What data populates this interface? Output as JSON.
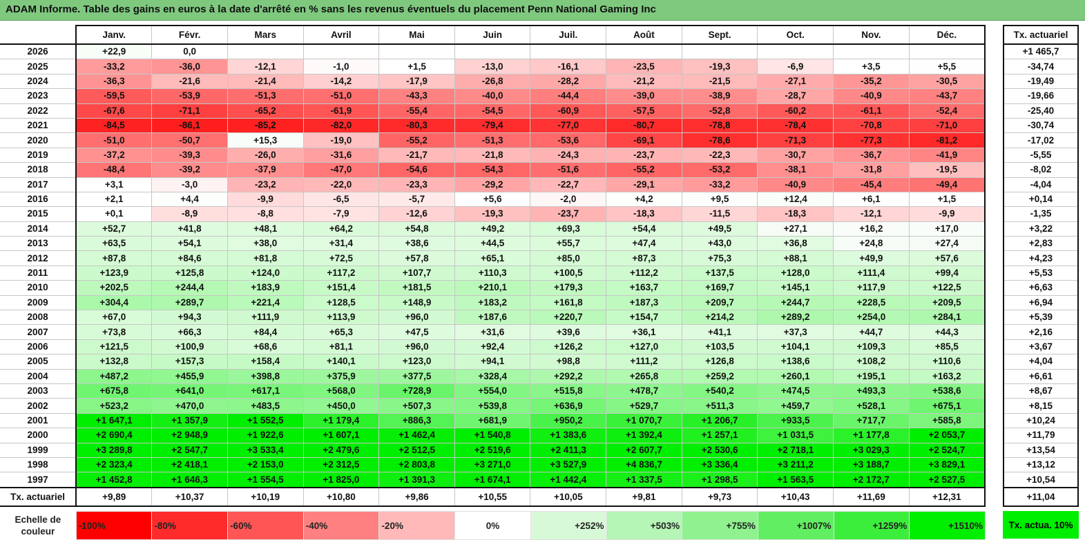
{
  "title": "ADAM Informe. Table des gains en euros à la date d'arrêté en % sans les revenus éventuels du placement Penn National Gaming Inc",
  "months": [
    "Janv.",
    "Févr.",
    "Mars",
    "Avril",
    "Mai",
    "Juin",
    "Juil.",
    "Août",
    "Sept.",
    "Oct.",
    "Nov.",
    "Déc."
  ],
  "act_header": "Tx. actuariel",
  "rows": [
    {
      "year": "2026",
      "vals": [
        "+22,9",
        "0,0",
        "",
        "",
        "",
        "",
        "",
        "",
        "",
        "",
        "",
        ""
      ],
      "nums": [
        22.9,
        0,
        null,
        null,
        null,
        null,
        null,
        null,
        null,
        null,
        null,
        null
      ],
      "act": "+1 465,7"
    },
    {
      "year": "2025",
      "vals": [
        "-33,2",
        "-36,0",
        "-12,1",
        "-1,0",
        "+1,5",
        "-13,0",
        "-16,1",
        "-23,5",
        "-19,3",
        "-6,9",
        "+3,5",
        "+5,5"
      ],
      "nums": [
        -33.2,
        -36,
        -12.1,
        -1,
        1.5,
        -13,
        -16.1,
        -23.5,
        -19.3,
        -6.9,
        3.5,
        5.5
      ],
      "act": "-34,74"
    },
    {
      "year": "2024",
      "vals": [
        "-36,3",
        "-21,6",
        "-21,4",
        "-14,2",
        "-17,9",
        "-26,8",
        "-28,2",
        "-21,2",
        "-21,5",
        "-27,1",
        "-35,2",
        "-30,5"
      ],
      "nums": [
        -36.3,
        -21.6,
        -21.4,
        -14.2,
        -17.9,
        -26.8,
        -28.2,
        -21.2,
        -21.5,
        -27.1,
        -35.2,
        -30.5
      ],
      "act": "-19,49"
    },
    {
      "year": "2023",
      "vals": [
        "-59,5",
        "-53,9",
        "-51,3",
        "-51,0",
        "-43,3",
        "-40,0",
        "-44,4",
        "-39,0",
        "-38,9",
        "-28,7",
        "-40,9",
        "-43,7"
      ],
      "nums": [
        -59.5,
        -53.9,
        -51.3,
        -51,
        -43.3,
        -40,
        -44.4,
        -39,
        -38.9,
        -28.7,
        -40.9,
        -43.7
      ],
      "act": "-19,66"
    },
    {
      "year": "2022",
      "vals": [
        "-67,6",
        "-71,1",
        "-65,2",
        "-61,9",
        "-55,4",
        "-54,5",
        "-60,9",
        "-57,5",
        "-52,8",
        "-60,2",
        "-61,1",
        "-52,4"
      ],
      "nums": [
        -67.6,
        -71.1,
        -65.2,
        -61.9,
        -55.4,
        -54.5,
        -60.9,
        -57.5,
        -52.8,
        -60.2,
        -61.1,
        -52.4
      ],
      "act": "-25,40"
    },
    {
      "year": "2021",
      "vals": [
        "-84,5",
        "-86,1",
        "-85,2",
        "-82,0",
        "-80,3",
        "-79,4",
        "-77,0",
        "-80,7",
        "-78,8",
        "-78,4",
        "-70,8",
        "-71,0"
      ],
      "nums": [
        -84.5,
        -86.1,
        -85.2,
        -82,
        -80.3,
        -79.4,
        -77,
        -80.7,
        -78.8,
        -78.4,
        -70.8,
        -71
      ],
      "act": "-30,74"
    },
    {
      "year": "2020",
      "vals": [
        "-51,0",
        "-50,7",
        "+15,3",
        "-19,0",
        "-55,2",
        "-51,3",
        "-53,6",
        "-69,1",
        "-78,6",
        "-71,3",
        "-77,3",
        "-81,2"
      ],
      "nums": [
        -51,
        -50.7,
        15.3,
        -19,
        -55.2,
        -51.3,
        -53.6,
        -69.1,
        -78.6,
        -71.3,
        -77.3,
        -81.2
      ],
      "act": "-17,02"
    },
    {
      "year": "2019",
      "vals": [
        "-37,2",
        "-39,3",
        "-26,0",
        "-31,6",
        "-21,7",
        "-21,8",
        "-24,3",
        "-23,7",
        "-22,3",
        "-30,7",
        "-36,7",
        "-41,9"
      ],
      "nums": [
        -37.2,
        -39.3,
        -26,
        -31.6,
        -21.7,
        -21.8,
        -24.3,
        -23.7,
        -22.3,
        -30.7,
        -36.7,
        -41.9
      ],
      "act": "-5,55"
    },
    {
      "year": "2018",
      "vals": [
        "-48,4",
        "-39,2",
        "-37,9",
        "-47,0",
        "-54,6",
        "-54,3",
        "-51,6",
        "-55,2",
        "-53,2",
        "-38,1",
        "-31,8",
        "-19,5"
      ],
      "nums": [
        -48.4,
        -39.2,
        -37.9,
        -47,
        -54.6,
        -54.3,
        -51.6,
        -55.2,
        -53.2,
        -38.1,
        -31.8,
        -19.5
      ],
      "act": "-8,02"
    },
    {
      "year": "2017",
      "vals": [
        "+3,1",
        "-3,0",
        "-23,2",
        "-22,0",
        "-23,3",
        "-29,2",
        "-22,7",
        "-29,1",
        "-33,2",
        "-40,9",
        "-45,4",
        "-49,4"
      ],
      "nums": [
        3.1,
        -3,
        -23.2,
        -22,
        -23.3,
        -29.2,
        -22.7,
        -29.1,
        -33.2,
        -40.9,
        -45.4,
        -49.4
      ],
      "act": "-4,04"
    },
    {
      "year": "2016",
      "vals": [
        "+2,1",
        "+4,4",
        "-9,9",
        "-6,5",
        "-5,7",
        "+5,6",
        "-2,0",
        "+4,2",
        "+9,5",
        "+12,4",
        "+6,1",
        "+1,5"
      ],
      "nums": [
        2.1,
        4.4,
        -9.9,
        -6.5,
        -5.7,
        5.6,
        -2,
        4.2,
        9.5,
        12.4,
        6.1,
        1.5
      ],
      "act": "+0,14"
    },
    {
      "year": "2015",
      "vals": [
        "+0,1",
        "-8,9",
        "-8,8",
        "-7,9",
        "-12,6",
        "-19,3",
        "-23,7",
        "-18,3",
        "-11,5",
        "-18,3",
        "-12,1",
        "-9,9"
      ],
      "nums": [
        0.1,
        -8.9,
        -8.8,
        -7.9,
        -12.6,
        -19.3,
        -23.7,
        -18.3,
        -11.5,
        -18.3,
        -12.1,
        -9.9
      ],
      "act": "-1,35"
    },
    {
      "year": "2014",
      "vals": [
        "+52,7",
        "+41,8",
        "+48,1",
        "+64,2",
        "+54,8",
        "+49,2",
        "+69,3",
        "+54,4",
        "+49,5",
        "+27,1",
        "+16,2",
        "+17,0"
      ],
      "nums": [
        52.7,
        41.8,
        48.1,
        64.2,
        54.8,
        49.2,
        69.3,
        54.4,
        49.5,
        27.1,
        16.2,
        17
      ],
      "act": "+3,22"
    },
    {
      "year": "2013",
      "vals": [
        "+63,5",
        "+54,1",
        "+38,0",
        "+31,4",
        "+38,6",
        "+44,5",
        "+55,7",
        "+47,4",
        "+43,0",
        "+36,8",
        "+24,8",
        "+27,4"
      ],
      "nums": [
        63.5,
        54.1,
        38,
        31.4,
        38.6,
        44.5,
        55.7,
        47.4,
        43,
        36.8,
        24.8,
        27.4
      ],
      "act": "+2,83"
    },
    {
      "year": "2012",
      "vals": [
        "+87,8",
        "+84,6",
        "+81,8",
        "+72,5",
        "+57,8",
        "+65,1",
        "+85,0",
        "+87,3",
        "+75,3",
        "+88,1",
        "+49,9",
        "+57,6"
      ],
      "nums": [
        87.8,
        84.6,
        81.8,
        72.5,
        57.8,
        65.1,
        85,
        87.3,
        75.3,
        88.1,
        49.9,
        57.6
      ],
      "act": "+4,23"
    },
    {
      "year": "2011",
      "vals": [
        "+123,9",
        "+125,8",
        "+124,0",
        "+117,2",
        "+107,7",
        "+110,3",
        "+100,5",
        "+112,2",
        "+137,5",
        "+128,0",
        "+111,4",
        "+99,4"
      ],
      "nums": [
        123.9,
        125.8,
        124,
        117.2,
        107.7,
        110.3,
        100.5,
        112.2,
        137.5,
        128,
        111.4,
        99.4
      ],
      "act": "+5,53"
    },
    {
      "year": "2010",
      "vals": [
        "+202,5",
        "+244,4",
        "+183,9",
        "+151,4",
        "+181,5",
        "+210,1",
        "+179,3",
        "+163,7",
        "+169,7",
        "+145,1",
        "+117,9",
        "+122,5"
      ],
      "nums": [
        202.5,
        244.4,
        183.9,
        151.4,
        181.5,
        210.1,
        179.3,
        163.7,
        169.7,
        145.1,
        117.9,
        122.5
      ],
      "act": "+6,63"
    },
    {
      "year": "2009",
      "vals": [
        "+304,4",
        "+289,7",
        "+221,4",
        "+128,5",
        "+148,9",
        "+183,2",
        "+161,8",
        "+187,3",
        "+209,7",
        "+244,7",
        "+228,5",
        "+209,5"
      ],
      "nums": [
        304.4,
        289.7,
        221.4,
        128.5,
        148.9,
        183.2,
        161.8,
        187.3,
        209.7,
        244.7,
        228.5,
        209.5
      ],
      "act": "+6,94"
    },
    {
      "year": "2008",
      "vals": [
        "+67,0",
        "+94,3",
        "+111,9",
        "+113,9",
        "+96,0",
        "+187,6",
        "+220,7",
        "+154,7",
        "+214,2",
        "+289,2",
        "+254,0",
        "+284,1"
      ],
      "nums": [
        67,
        94.3,
        111.9,
        113.9,
        96,
        187.6,
        220.7,
        154.7,
        214.2,
        289.2,
        254,
        284.1
      ],
      "act": "+5,39"
    },
    {
      "year": "2007",
      "vals": [
        "+73,8",
        "+66,3",
        "+84,4",
        "+65,3",
        "+47,5",
        "+31,6",
        "+39,6",
        "+36,1",
        "+41,1",
        "+37,3",
        "+44,7",
        "+44,3"
      ],
      "nums": [
        73.8,
        66.3,
        84.4,
        65.3,
        47.5,
        31.6,
        39.6,
        36.1,
        41.1,
        37.3,
        44.7,
        44.3
      ],
      "act": "+2,16"
    },
    {
      "year": "2006",
      "vals": [
        "+121,5",
        "+100,9",
        "+68,6",
        "+81,1",
        "+96,0",
        "+92,4",
        "+126,2",
        "+127,0",
        "+103,5",
        "+104,1",
        "+109,3",
        "+85,5"
      ],
      "nums": [
        121.5,
        100.9,
        68.6,
        81.1,
        96,
        92.4,
        126.2,
        127,
        103.5,
        104.1,
        109.3,
        85.5
      ],
      "act": "+3,67"
    },
    {
      "year": "2005",
      "vals": [
        "+132,8",
        "+157,3",
        "+158,4",
        "+140,1",
        "+123,0",
        "+94,1",
        "+98,8",
        "+111,2",
        "+126,8",
        "+138,6",
        "+108,2",
        "+110,6"
      ],
      "nums": [
        132.8,
        157.3,
        158.4,
        140.1,
        123,
        94.1,
        98.8,
        111.2,
        126.8,
        138.6,
        108.2,
        110.6
      ],
      "act": "+4,04"
    },
    {
      "year": "2004",
      "vals": [
        "+487,2",
        "+455,9",
        "+398,8",
        "+375,9",
        "+377,5",
        "+328,4",
        "+292,2",
        "+265,8",
        "+259,2",
        "+260,1",
        "+195,1",
        "+163,2"
      ],
      "nums": [
        487.2,
        455.9,
        398.8,
        375.9,
        377.5,
        328.4,
        292.2,
        265.8,
        259.2,
        260.1,
        195.1,
        163.2
      ],
      "act": "+6,61"
    },
    {
      "year": "2003",
      "vals": [
        "+675,8",
        "+641,0",
        "+617,1",
        "+568,0",
        "+728,9",
        "+554,0",
        "+515,8",
        "+478,7",
        "+540,2",
        "+474,5",
        "+493,3",
        "+538,6"
      ],
      "nums": [
        675.8,
        641,
        617.1,
        568,
        728.9,
        554,
        515.8,
        478.7,
        540.2,
        474.5,
        493.3,
        538.6
      ],
      "act": "+8,67"
    },
    {
      "year": "2002",
      "vals": [
        "+523,2",
        "+470,0",
        "+483,5",
        "+450,0",
        "+507,3",
        "+539,8",
        "+636,9",
        "+529,7",
        "+511,3",
        "+459,7",
        "+528,1",
        "+675,1"
      ],
      "nums": [
        523.2,
        470,
        483.5,
        450,
        507.3,
        539.8,
        636.9,
        529.7,
        511.3,
        459.7,
        528.1,
        675.1
      ],
      "act": "+8,15"
    },
    {
      "year": "2001",
      "vals": [
        "+1 647,1",
        "+1 357,9",
        "+1 552,5",
        "+1 179,4",
        "+886,3",
        "+681,9",
        "+950,2",
        "+1 070,7",
        "+1 206,7",
        "+933,5",
        "+717,7",
        "+585,8"
      ],
      "nums": [
        1647.1,
        1357.9,
        1552.5,
        1179.4,
        886.3,
        681.9,
        950.2,
        1070.7,
        1206.7,
        933.5,
        717.7,
        585.8
      ],
      "act": "+10,24"
    },
    {
      "year": "2000",
      "vals": [
        "+2 690,4",
        "+2 948,9",
        "+1 922,6",
        "+1 607,1",
        "+1 462,4",
        "+1 540,8",
        "+1 383,6",
        "+1 392,4",
        "+1 257,1",
        "+1 031,5",
        "+1 177,8",
        "+2 053,7"
      ],
      "nums": [
        2690.4,
        2948.9,
        1922.6,
        1607.1,
        1462.4,
        1540.8,
        1383.6,
        1392.4,
        1257.1,
        1031.5,
        1177.8,
        2053.7
      ],
      "act": "+11,79"
    },
    {
      "year": "1999",
      "vals": [
        "+3 289,8",
        "+2 547,7",
        "+3 533,4",
        "+2 479,6",
        "+2 512,5",
        "+2 519,6",
        "+2 411,3",
        "+2 607,7",
        "+2 530,6",
        "+2 718,1",
        "+3 029,3",
        "+2 524,7"
      ],
      "nums": [
        3289.8,
        2547.7,
        3533.4,
        2479.6,
        2512.5,
        2519.6,
        2411.3,
        2607.7,
        2530.6,
        2718.1,
        3029.3,
        2524.7
      ],
      "act": "+13,54"
    },
    {
      "year": "1998",
      "vals": [
        "+2 323,4",
        "+2 418,1",
        "+2 153,0",
        "+2 312,5",
        "+2 803,8",
        "+3 271,0",
        "+3 527,9",
        "+4 836,7",
        "+3 336,4",
        "+3 211,2",
        "+3 188,7",
        "+3 829,1"
      ],
      "nums": [
        2323.4,
        2418.1,
        2153,
        2312.5,
        2803.8,
        3271,
        3527.9,
        4836.7,
        3336.4,
        3211.2,
        3188.7,
        3829.1
      ],
      "act": "+13,12"
    },
    {
      "year": "1997",
      "vals": [
        "+1 452,8",
        "+1 646,3",
        "+1 554,5",
        "+1 825,0",
        "+1 391,3",
        "+1 674,1",
        "+1 442,4",
        "+1 337,5",
        "+1 298,5",
        "+1 563,5",
        "+2 172,7",
        "+2 527,5"
      ],
      "nums": [
        1452.8,
        1646.3,
        1554.5,
        1825,
        1391.3,
        1674.1,
        1442.4,
        1337.5,
        1298.5,
        1563.5,
        2172.7,
        2527.5
      ],
      "act": "+10,54"
    }
  ],
  "footer": {
    "label": "Tx. actuariel",
    "vals": [
      "+9,89",
      "+10,37",
      "+10,19",
      "+10,80",
      "+9,86",
      "+10,55",
      "+10,05",
      "+9,81",
      "+9,73",
      "+10,43",
      "+11,69",
      "+12,31"
    ],
    "act": "+11,04"
  },
  "scale": {
    "label": "Echelle de couleur",
    "items": [
      {
        "text": "-100%",
        "color": "#ff0000",
        "align": "left"
      },
      {
        "text": "-80%",
        "color": "#ff2a2a",
        "align": "left"
      },
      {
        "text": "-60%",
        "color": "#ff5555",
        "align": "left"
      },
      {
        "text": "-40%",
        "color": "#ff8080",
        "align": "left"
      },
      {
        "text": "-20%",
        "color": "#ffb9b9",
        "align": "left"
      },
      {
        "text": "0%",
        "color": "#ffffff",
        "align": "center"
      },
      {
        "text": "+252%",
        "color": "#d7f9d7",
        "align": "right"
      },
      {
        "text": "+503%",
        "color": "#b5f5b5",
        "align": "right"
      },
      {
        "text": "+755%",
        "color": "#8ff28f",
        "align": "right"
      },
      {
        "text": "+1007%",
        "color": "#62ee62",
        "align": "right"
      },
      {
        "text": "+1259%",
        "color": "#3cee3c",
        "align": "right"
      },
      {
        "text": "+1510%",
        "color": "#00ee00",
        "align": "right"
      }
    ],
    "act_label": "Tx. actua. 10%",
    "act_color": "#00ee00"
  }
}
